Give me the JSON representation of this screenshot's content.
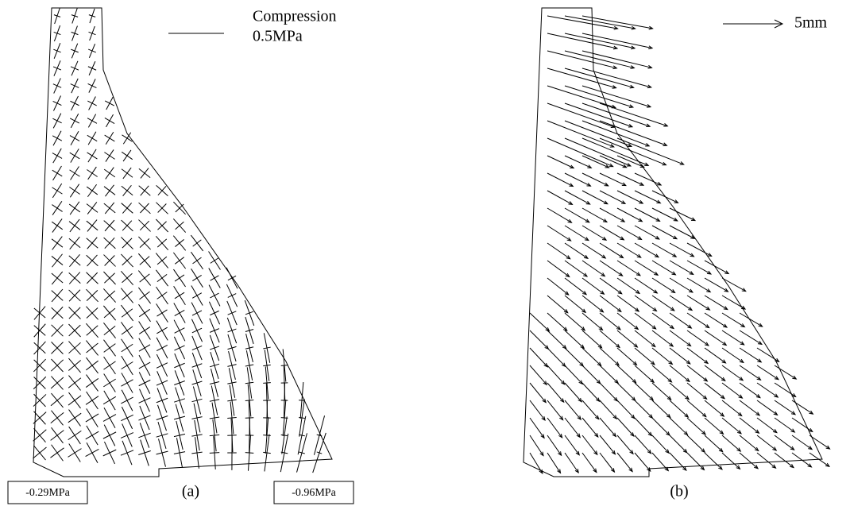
{
  "panel_a": {
    "legend_label": "Compression",
    "legend_value": "0.5MPa",
    "left_box": "-0.29MPa",
    "right_box": "-0.96MPa",
    "caption": "(a)"
  },
  "panel_b": {
    "legend_value": "5mm",
    "caption": "(b)"
  }
}
